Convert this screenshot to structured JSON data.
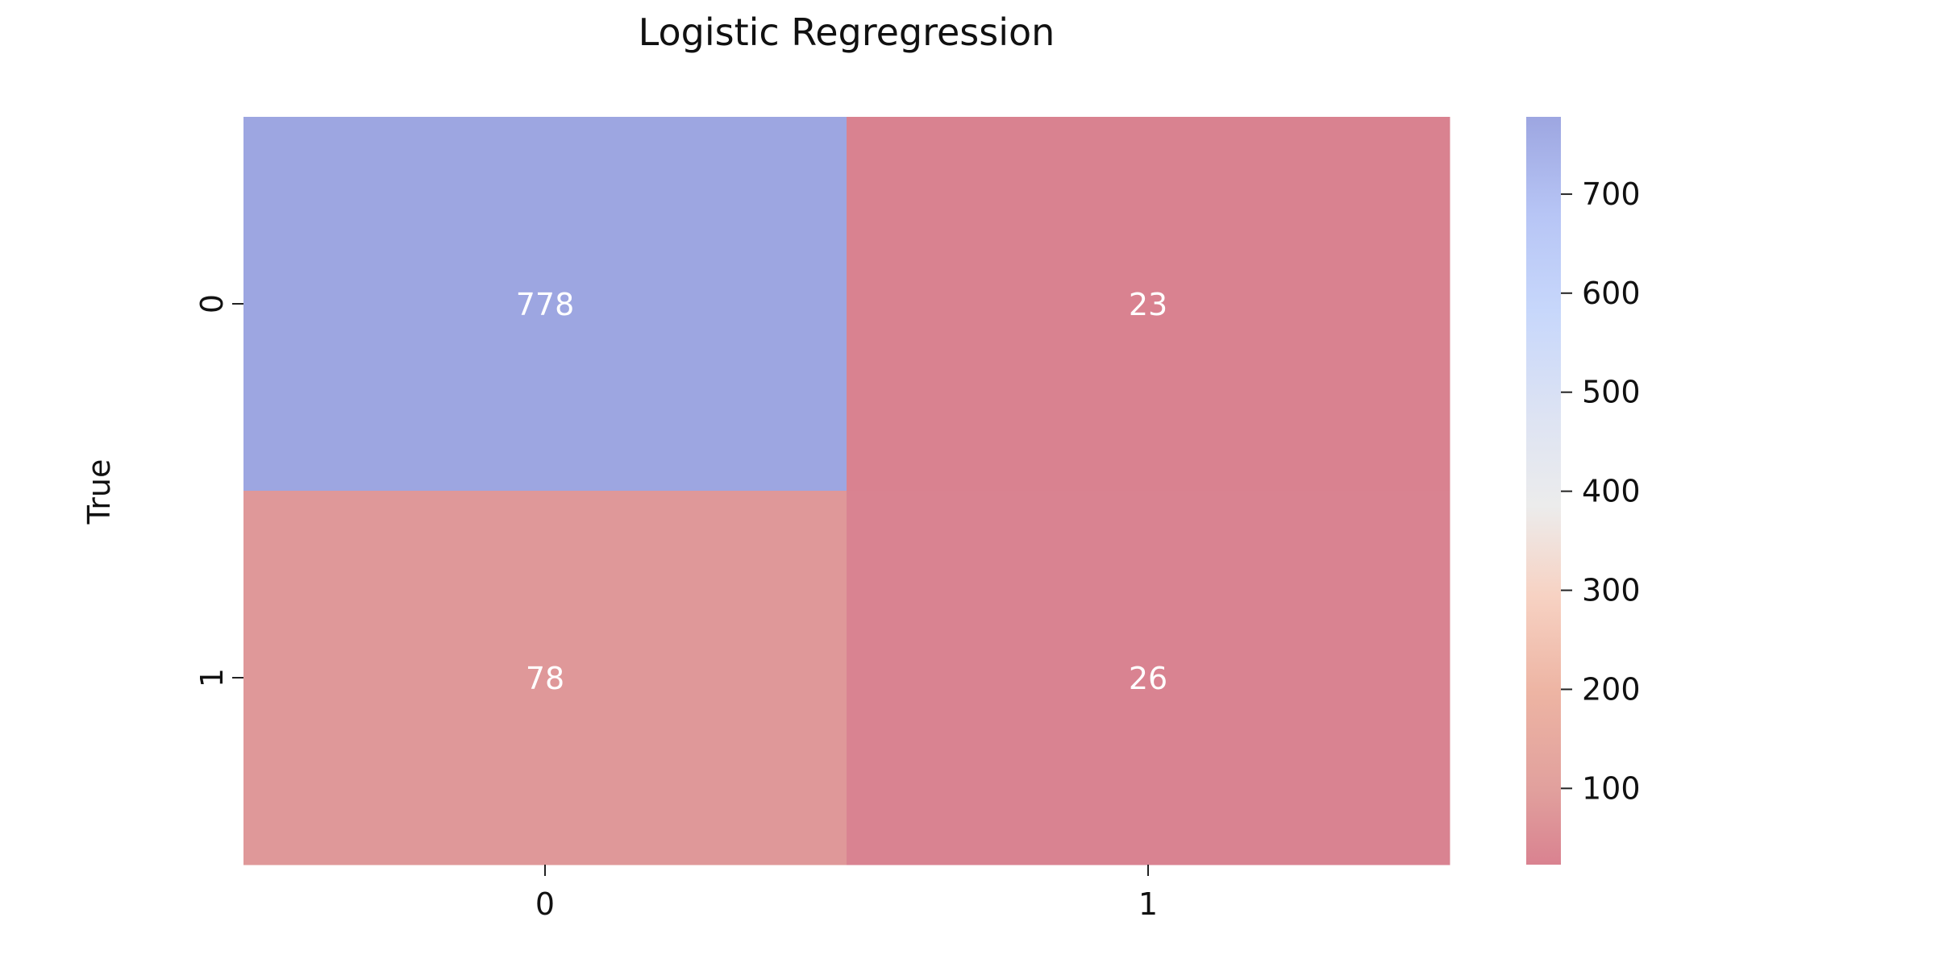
{
  "chart_data": {
    "type": "heatmap",
    "title": "Logistic Regregression",
    "xlabel": "",
    "ylabel": "True",
    "x_categories": [
      "0",
      "1"
    ],
    "y_categories": [
      "0",
      "1"
    ],
    "values": [
      [
        778,
        23
      ],
      [
        78,
        26
      ]
    ],
    "colormap": "coolwarm_r",
    "colorbar": {
      "range": [
        23,
        778
      ],
      "ticks": [
        "100",
        "200",
        "300",
        "400",
        "500",
        "600",
        "700"
      ]
    },
    "colors": {
      "cell_high": "#9da6e1",
      "cell_low": "#d98290",
      "annotation_text": "#ffffff"
    }
  }
}
